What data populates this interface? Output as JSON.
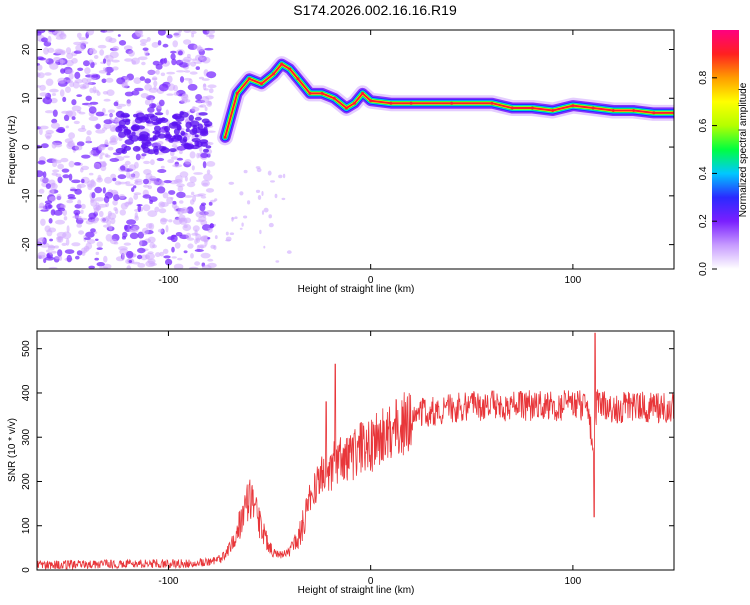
{
  "title": "S174.2026.002.16.16.R19",
  "colors": {
    "snr_line": "#e8363a",
    "ridge": "#ff1a2e",
    "axis": "#000000",
    "noise_purple": "#7a2bff",
    "noise_light": "#cfa8ff"
  },
  "chart_data": [
    {
      "type": "heatmap",
      "xlabel": "Height of straight line (km)",
      "ylabel": "Frequency (Hz)",
      "xlim": [
        -165,
        150
      ],
      "ylim": [
        -25,
        24
      ],
      "xticks": [
        -100,
        0,
        100
      ],
      "yticks": [
        20,
        10,
        0,
        -10,
        -20
      ],
      "colorbar": {
        "label": "Normalized spectral amplitude",
        "range": [
          0,
          1
        ],
        "ticks": [
          "0.0",
          "0.2",
          "0.4",
          "0.6",
          "0.8"
        ],
        "tick_values": [
          0.0,
          0.2,
          0.4,
          0.6,
          0.8
        ],
        "colormap": [
          "#ffffff",
          "#c79bff",
          "#7a1fff",
          "#2a2aff",
          "#00c8ff",
          "#00ff40",
          "#b4ff00",
          "#ffff00",
          "#ff9d00",
          "#ff2020",
          "#ff0080"
        ]
      },
      "ridge": {
        "x": [
          -72,
          -66,
          -60,
          -54,
          -48,
          -44,
          -40,
          -36,
          -30,
          -24,
          -18,
          -12,
          -8,
          -4,
          0,
          10,
          20,
          40,
          60,
          70,
          80,
          90,
          100,
          110,
          120,
          130,
          140,
          150
        ],
        "y": [
          2,
          11,
          14,
          13,
          15,
          17,
          16,
          14,
          11,
          11,
          10,
          8,
          9,
          11,
          9.5,
          9,
          9,
          9,
          9,
          8,
          8,
          7.5,
          8.5,
          8,
          7.5,
          7.5,
          7,
          7
        ]
      }
    },
    {
      "type": "line",
      "xlabel": "Height of straight line (km)",
      "ylabel": "SNR (10 * v/v)",
      "xlim": [
        -165,
        150
      ],
      "ylim": [
        0,
        540
      ],
      "xticks": [
        -100,
        0,
        100
      ],
      "yticks": [
        0,
        100,
        200,
        300,
        400,
        500
      ],
      "series": [
        {
          "x": [
            -165,
            -150,
            -130,
            -110,
            -90,
            -80,
            -74,
            -70,
            -66,
            -62,
            -60,
            -56,
            -52,
            -48,
            -44,
            -40,
            -36,
            -32,
            -28,
            -24,
            -20,
            -18,
            -16,
            -12,
            -8,
            -4,
            0,
            5,
            10,
            15,
            20,
            25,
            30,
            40,
            50,
            60,
            70,
            80,
            90,
            100,
            105,
            108,
            110,
            112,
            115,
            120,
            130,
            140,
            150
          ],
          "y": [
            12,
            12,
            13,
            14,
            15,
            18,
            25,
            45,
            90,
            140,
            180,
            120,
            70,
            40,
            35,
            40,
            70,
            120,
            180,
            220,
            220,
            240,
            250,
            245,
            260,
            280,
            280,
            300,
            315,
            330,
            340,
            355,
            360,
            365,
            370,
            372,
            370,
            372,
            370,
            375,
            370,
            360,
            250,
            390,
            370,
            365,
            370,
            365,
            370
          ]
        }
      ]
    }
  ]
}
